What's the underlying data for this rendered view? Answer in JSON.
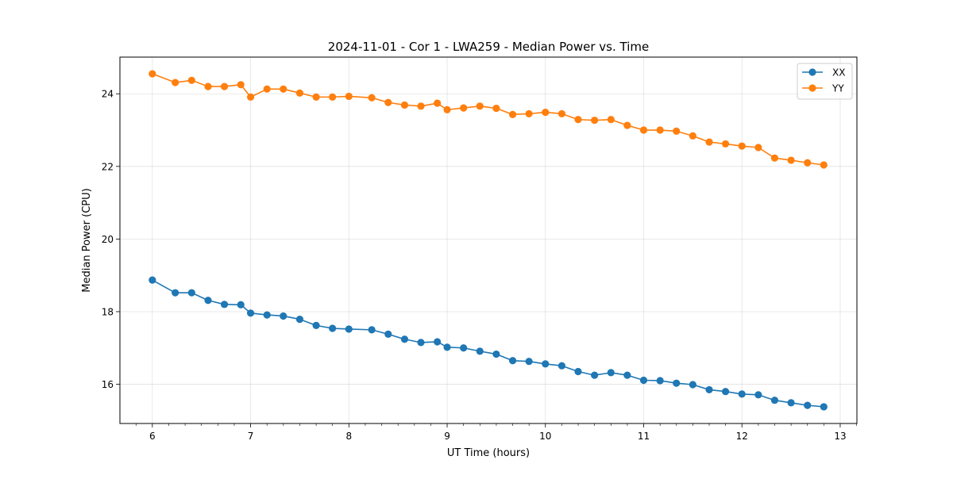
{
  "chart_data": {
    "type": "line",
    "title": "2024-11-01 - Cor 1 - LWA259 - Median Power vs. Time",
    "xlabel": "UT Time (hours)",
    "ylabel": "Median Power (CPU)",
    "xlim": [
      5.67,
      13.17
    ],
    "ylim": [
      14.92,
      25.01
    ],
    "xticks": [
      6,
      7,
      8,
      9,
      10,
      11,
      12,
      13
    ],
    "xtick_labels": [
      "6",
      "7",
      "8",
      "9",
      "10",
      "11",
      "12",
      "13"
    ],
    "x_minor_step": 0.16667,
    "yticks": [
      16,
      18,
      20,
      22,
      24
    ],
    "ytick_labels": [
      "16",
      "18",
      "20",
      "22",
      "24"
    ],
    "grid": true,
    "legend_position": "top-right",
    "x": [
      6.0,
      6.233,
      6.4,
      6.567,
      6.733,
      6.9,
      7.0,
      7.167,
      7.333,
      7.5,
      7.667,
      7.833,
      8.0,
      8.233,
      8.4,
      8.567,
      8.733,
      8.9,
      9.0,
      9.167,
      9.333,
      9.5,
      9.667,
      9.833,
      10.0,
      10.167,
      10.333,
      10.5,
      10.667,
      10.833,
      11.0,
      11.167,
      11.333,
      11.5,
      11.667,
      11.833,
      12.0,
      12.167,
      12.333,
      12.5,
      12.667,
      12.833
    ],
    "series": [
      {
        "name": "XX",
        "color": "#1f77b4",
        "marker": "circle",
        "values": [
          18.87,
          18.52,
          18.52,
          18.31,
          18.2,
          18.19,
          17.96,
          17.91,
          17.88,
          17.79,
          17.62,
          17.54,
          17.52,
          17.5,
          17.38,
          17.24,
          17.15,
          17.17,
          17.02,
          17.0,
          16.91,
          16.83,
          16.65,
          16.63,
          16.56,
          16.51,
          16.35,
          16.25,
          16.32,
          16.25,
          16.11,
          16.1,
          16.03,
          15.99,
          15.85,
          15.8,
          15.73,
          15.71,
          15.56,
          15.49,
          15.42,
          15.38
        ]
      },
      {
        "name": "YY",
        "color": "#ff7f0e",
        "marker": "circle",
        "values": [
          24.55,
          24.31,
          24.37,
          24.2,
          24.2,
          24.25,
          23.91,
          24.13,
          24.13,
          24.02,
          23.91,
          23.91,
          23.93,
          23.89,
          23.76,
          23.69,
          23.66,
          23.74,
          23.56,
          23.61,
          23.66,
          23.6,
          23.43,
          23.45,
          23.49,
          23.45,
          23.29,
          23.27,
          23.29,
          23.13,
          23.0,
          23.0,
          22.97,
          22.84,
          22.67,
          22.62,
          22.56,
          22.52,
          22.23,
          22.17,
          22.1,
          22.04
        ]
      }
    ]
  }
}
